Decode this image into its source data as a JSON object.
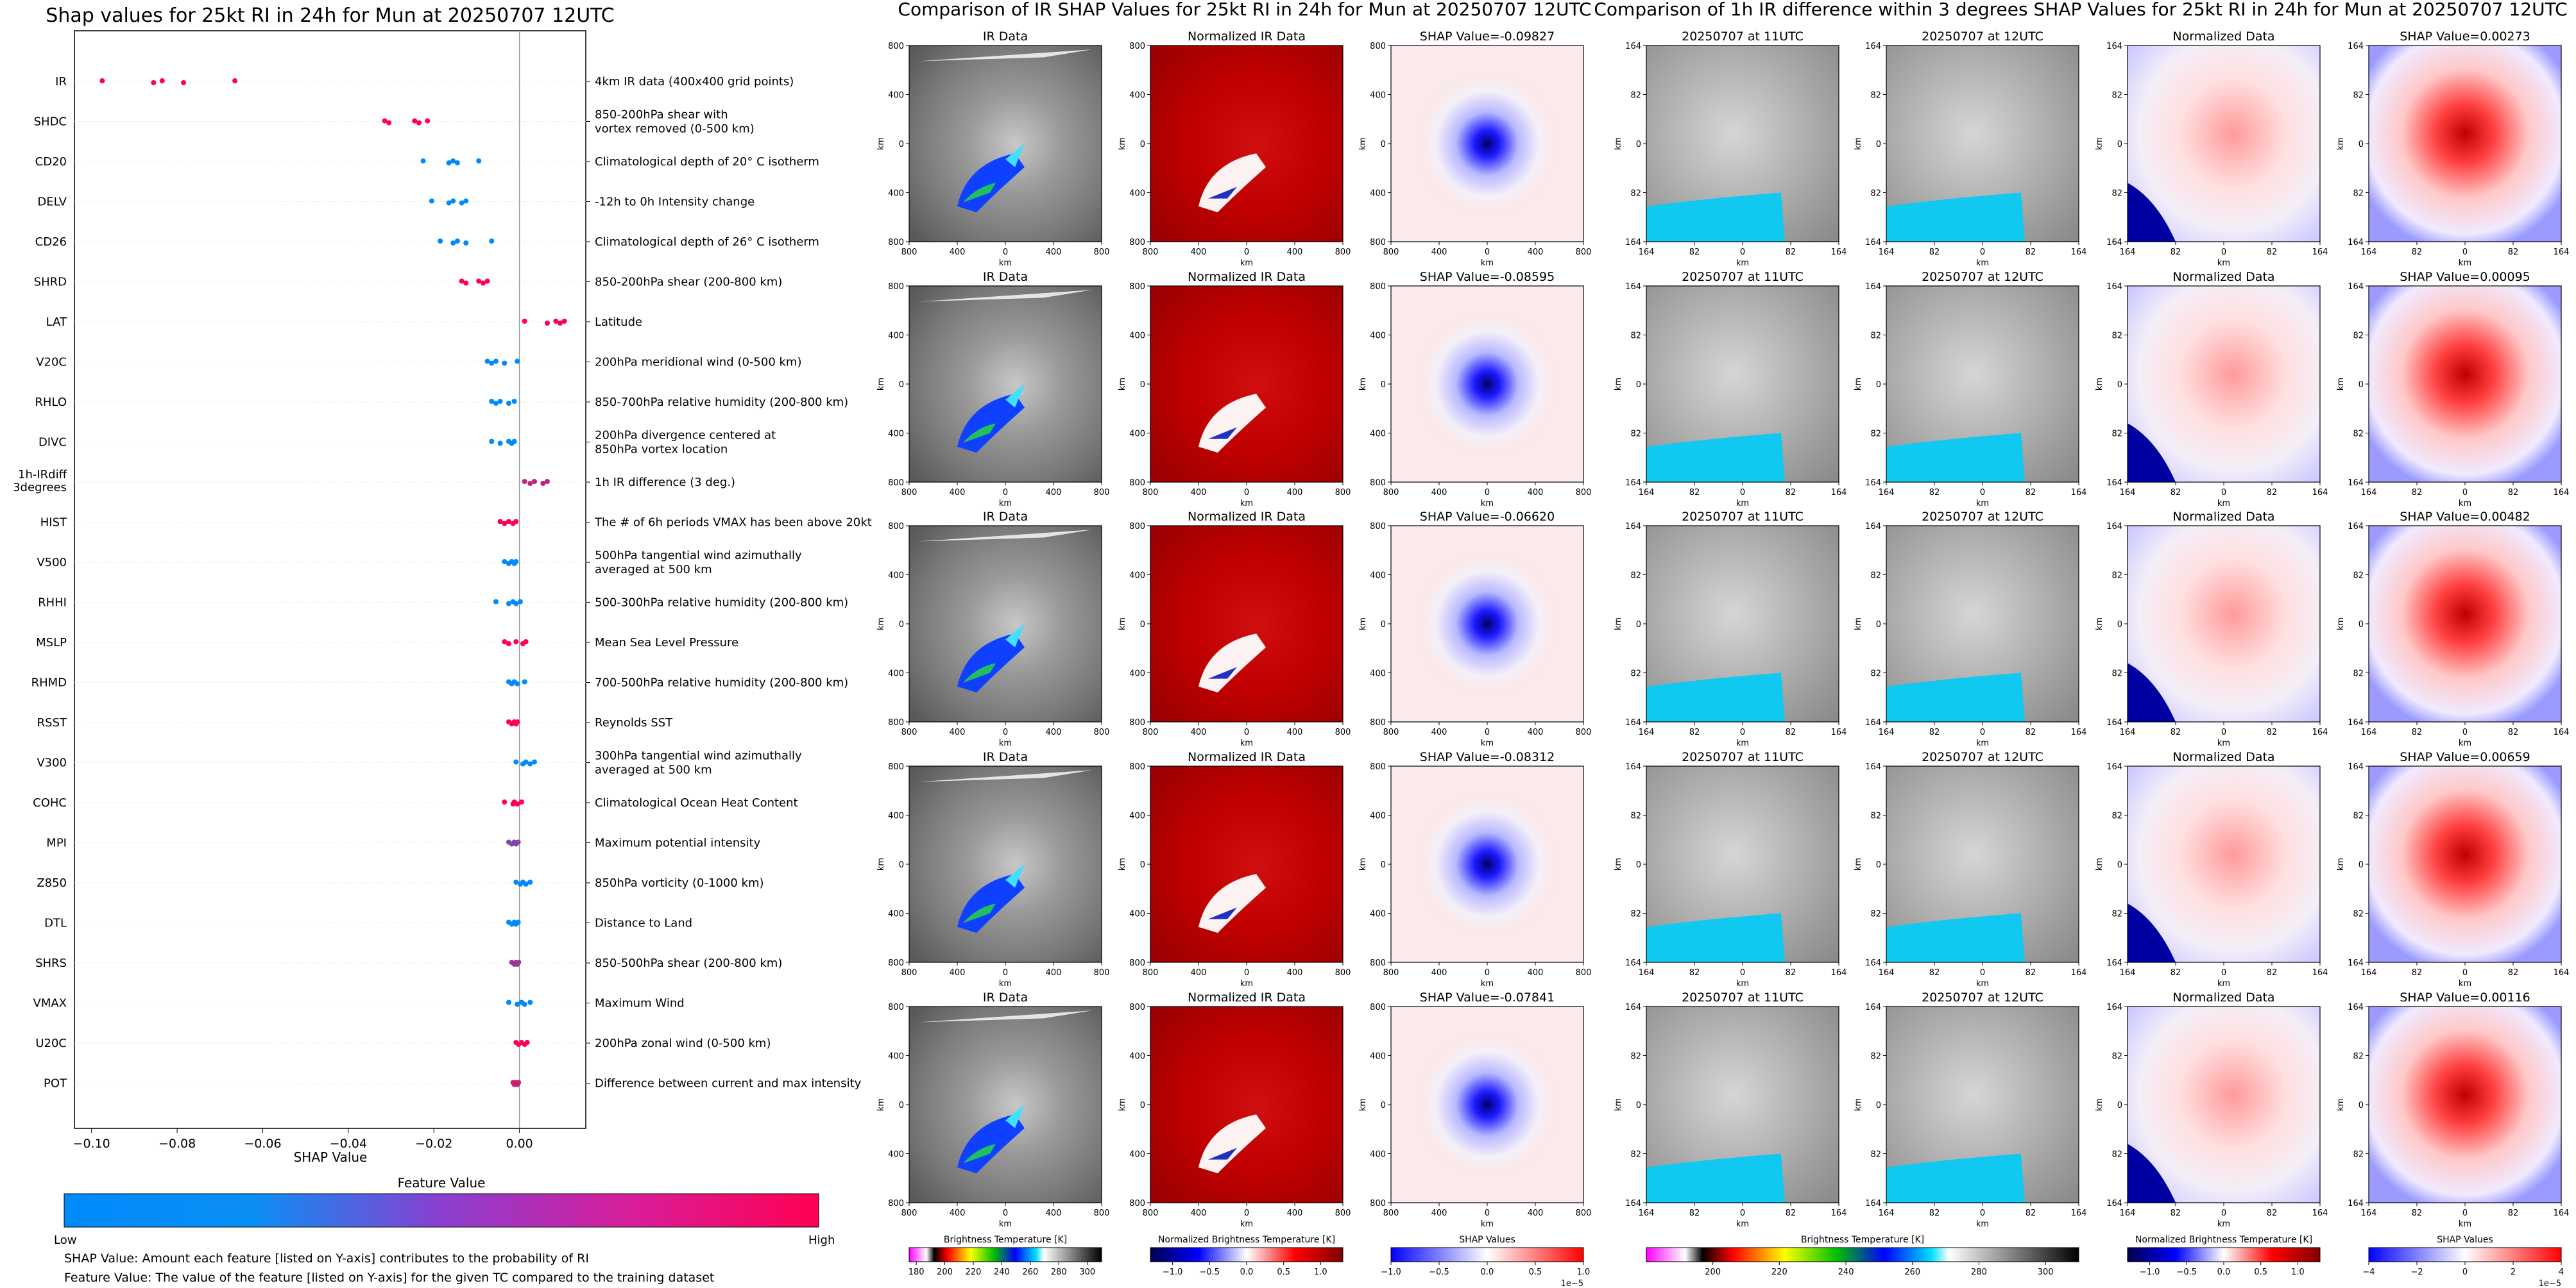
{
  "left_panel": {
    "title": "Shap values for 25kt RI in 24h for Mun at 20250707 12UTC",
    "x_axis_label": "SHAP Value",
    "x_ticks": [
      "-0.10",
      "-0.08",
      "-0.06",
      "-0.04",
      "-0.02",
      "0.00"
    ],
    "colorbar": {
      "label": "Feature Value",
      "low": "Low",
      "high": "High",
      "low_color": "#008afb",
      "high_color": "#ff0052"
    },
    "notes": [
      "SHAP Value: Amount each feature [listed on Y-axis] contributes to the probability of RI",
      "Feature Value: The value of the feature [listed on Y-axis] for the given TC compared to the training dataset"
    ]
  },
  "chart_data": {
    "type": "scatter",
    "title": "Shap values for 25kt RI in 24h for Mun at 20250707 12UTC",
    "xlabel": "SHAP Value",
    "ylabel": "",
    "xlim": [
      -0.104,
      0.0155
    ],
    "features": [
      {
        "name": "IR",
        "desc": [
          "4km IR data (400x400 grid points)"
        ],
        "points": [
          [
            -0.0975,
            1.0
          ],
          [
            -0.0855,
            1.0
          ],
          [
            -0.0835,
            1.0
          ],
          [
            -0.0785,
            1.0
          ],
          [
            -0.0665,
            1.0
          ]
        ]
      },
      {
        "name": "SHDC",
        "desc": [
          "850-200hPa shear with",
          "vortex removed (0-500 km)"
        ],
        "points": [
          [
            -0.0315,
            1.0
          ],
          [
            -0.0305,
            1.0
          ],
          [
            -0.0245,
            1.0
          ],
          [
            -0.0235,
            1.0
          ],
          [
            -0.0215,
            1.0
          ]
        ]
      },
      {
        "name": "CD20",
        "desc": [
          "Climatological depth of 20° C isotherm"
        ],
        "points": [
          [
            -0.0225,
            0.0
          ],
          [
            -0.0165,
            0.0
          ],
          [
            -0.0155,
            0.0
          ],
          [
            -0.0145,
            0.0
          ],
          [
            -0.0095,
            0.0
          ]
        ]
      },
      {
        "name": "DELV",
        "desc": [
          "-12h to 0h Intensity change"
        ],
        "points": [
          [
            -0.0205,
            0.0
          ],
          [
            -0.0165,
            0.0
          ],
          [
            -0.0155,
            0.0
          ],
          [
            -0.0135,
            0.0
          ],
          [
            -0.0125,
            0.0
          ]
        ]
      },
      {
        "name": "CD26",
        "desc": [
          "Climatological depth of 26° C isotherm"
        ],
        "points": [
          [
            -0.0185,
            0.0
          ],
          [
            -0.0155,
            0.0
          ],
          [
            -0.0145,
            0.0
          ],
          [
            -0.0125,
            0.0
          ],
          [
            -0.0065,
            0.0
          ]
        ]
      },
      {
        "name": "SHRD",
        "desc": [
          "850-200hPa shear (200-800 km)"
        ],
        "points": [
          [
            -0.0135,
            1.0
          ],
          [
            -0.0125,
            1.0
          ],
          [
            -0.0095,
            1.0
          ],
          [
            -0.0085,
            1.0
          ],
          [
            -0.0075,
            1.0
          ]
        ]
      },
      {
        "name": "LAT",
        "desc": [
          "Latitude"
        ],
        "points": [
          [
            0.0012,
            1.0
          ],
          [
            0.0065,
            1.0
          ],
          [
            0.0085,
            1.0
          ],
          [
            0.0095,
            1.0
          ],
          [
            0.0105,
            1.0
          ]
        ]
      },
      {
        "name": "V20C",
        "desc": [
          "200hPa meridional wind (0-500 km)"
        ],
        "points": [
          [
            -0.0075,
            0.0
          ],
          [
            -0.0065,
            0.0
          ],
          [
            -0.0055,
            0.0
          ],
          [
            -0.0035,
            0.0
          ],
          [
            -0.0005,
            0.0
          ]
        ]
      },
      {
        "name": "RHLO",
        "desc": [
          "850-700hPa relative humidity (200-800 km)"
        ],
        "points": [
          [
            -0.0065,
            0.0
          ],
          [
            -0.0055,
            0.0
          ],
          [
            -0.0045,
            0.0
          ],
          [
            -0.0025,
            0.0
          ],
          [
            -0.0012,
            0.0
          ]
        ]
      },
      {
        "name": "DIVC",
        "desc": [
          "200hPa divergence centered at",
          "850hPa vortex location"
        ],
        "points": [
          [
            -0.0065,
            0.0
          ],
          [
            -0.0045,
            0.0
          ],
          [
            -0.0025,
            0.0
          ],
          [
            -0.0018,
            0.0
          ],
          [
            -0.0012,
            0.0
          ]
        ]
      },
      {
        "name": "1h-IRdiff 3degrees",
        "desc": [
          "1h IR difference (3 deg.)"
        ],
        "points": [
          [
            0.0012,
            0.75
          ],
          [
            0.0025,
            0.75
          ],
          [
            0.0035,
            0.75
          ],
          [
            0.0055,
            0.75
          ],
          [
            0.0065,
            0.75
          ]
        ]
      },
      {
        "name": "HIST",
        "desc": [
          "The # of 6h periods VMAX has been above 20kt"
        ],
        "points": [
          [
            -0.0045,
            1.0
          ],
          [
            -0.0035,
            1.0
          ],
          [
            -0.0025,
            1.0
          ],
          [
            -0.0015,
            1.0
          ],
          [
            -0.0008,
            1.0
          ]
        ]
      },
      {
        "name": "V500",
        "desc": [
          "500hPa tangential wind azimuthally",
          "averaged at 500 km"
        ],
        "points": [
          [
            -0.0035,
            0.0
          ],
          [
            -0.0025,
            0.0
          ],
          [
            -0.0018,
            0.0
          ],
          [
            -0.0012,
            0.0
          ],
          [
            -0.0008,
            0.0
          ]
        ]
      },
      {
        "name": "RHHI",
        "desc": [
          "500-300hPa relative humidity (200-800 km)"
        ],
        "points": [
          [
            -0.0055,
            0.0
          ],
          [
            -0.0025,
            0.0
          ],
          [
            -0.0015,
            0.0
          ],
          [
            -0.0008,
            0.0
          ],
          [
            0.0002,
            0.0
          ]
        ]
      },
      {
        "name": "MSLP",
        "desc": [
          "Mean Sea Level Pressure"
        ],
        "points": [
          [
            -0.0035,
            1.0
          ],
          [
            -0.0025,
            1.0
          ],
          [
            -0.0008,
            1.0
          ],
          [
            0.0008,
            1.0
          ],
          [
            0.0015,
            1.0
          ]
        ]
      },
      {
        "name": "RHMD",
        "desc": [
          "700-500hPa relative humidity (200-800 km)"
        ],
        "points": [
          [
            -0.0025,
            0.0
          ],
          [
            -0.0018,
            0.0
          ],
          [
            -0.0012,
            0.0
          ],
          [
            -0.0005,
            0.0
          ],
          [
            0.0012,
            0.0
          ]
        ]
      },
      {
        "name": "RSST",
        "desc": [
          "Reynolds SST"
        ],
        "points": [
          [
            -0.0025,
            1.0
          ],
          [
            -0.0018,
            1.0
          ],
          [
            -0.0012,
            1.0
          ],
          [
            -0.0008,
            1.0
          ],
          [
            -0.0005,
            1.0
          ]
        ]
      },
      {
        "name": "V300",
        "desc": [
          "300hPa tangential wind azimuthally",
          "averaged at 500 km"
        ],
        "points": [
          [
            -0.0008,
            0.0
          ],
          [
            0.0008,
            0.0
          ],
          [
            0.0015,
            0.0
          ],
          [
            0.0025,
            0.0
          ],
          [
            0.0035,
            0.0
          ]
        ]
      },
      {
        "name": "COHC",
        "desc": [
          "Climatological Ocean Heat Content"
        ],
        "points": [
          [
            -0.0035,
            1.0
          ],
          [
            -0.0015,
            1.0
          ],
          [
            -0.0012,
            1.0
          ],
          [
            -0.0005,
            1.0
          ],
          [
            0.0005,
            1.0
          ]
        ]
      },
      {
        "name": "MPI",
        "desc": [
          "Maximum potential intensity"
        ],
        "points": [
          [
            -0.0025,
            0.5
          ],
          [
            -0.0018,
            0.5
          ],
          [
            -0.0012,
            0.5
          ],
          [
            -0.0008,
            0.5
          ],
          [
            -0.0003,
            0.5
          ]
        ]
      },
      {
        "name": "Z850",
        "desc": [
          "850hPa vorticity (0-1000 km)"
        ],
        "points": [
          [
            -0.0008,
            0.0
          ],
          [
            0.0002,
            0.0
          ],
          [
            0.0008,
            0.0
          ],
          [
            0.0015,
            0.0
          ],
          [
            0.0025,
            0.0
          ]
        ]
      },
      {
        "name": "DTL",
        "desc": [
          "Distance to Land"
        ],
        "points": [
          [
            -0.0025,
            0.0
          ],
          [
            -0.0018,
            0.0
          ],
          [
            -0.0012,
            0.0
          ],
          [
            -0.0008,
            0.0
          ],
          [
            -0.0003,
            0.0
          ]
        ]
      },
      {
        "name": "SHRS",
        "desc": [
          "850-500hPa shear (200-800 km)"
        ],
        "points": [
          [
            -0.0018,
            0.6
          ],
          [
            -0.0012,
            0.6
          ],
          [
            -0.0008,
            0.6
          ],
          [
            -0.0005,
            0.6
          ],
          [
            -0.0002,
            0.6
          ]
        ]
      },
      {
        "name": "VMAX",
        "desc": [
          "Maximum Wind"
        ],
        "points": [
          [
            -0.0025,
            0.0
          ],
          [
            -0.0005,
            0.0
          ],
          [
            0.0005,
            0.0
          ],
          [
            0.0012,
            0.0
          ],
          [
            0.0025,
            0.0
          ]
        ]
      },
      {
        "name": "U20C",
        "desc": [
          "200hPa zonal wind (0-500 km)"
        ],
        "points": [
          [
            -0.0008,
            1.0
          ],
          [
            -0.0002,
            1.0
          ],
          [
            0.0005,
            1.0
          ],
          [
            0.0012,
            1.0
          ],
          [
            0.0018,
            1.0
          ]
        ]
      },
      {
        "name": "POT",
        "desc": [
          "Difference between current and max intensity"
        ],
        "points": [
          [
            -0.0015,
            0.8
          ],
          [
            -0.0012,
            0.8
          ],
          [
            -0.0008,
            0.8
          ],
          [
            -0.0005,
            0.8
          ],
          [
            -0.0002,
            0.8
          ]
        ]
      }
    ]
  },
  "ir_panel": {
    "title": "Comparison of IR SHAP Values for 25kt RI in 24h for Mun at 20250707 12UTC",
    "col_titles": [
      "IR Data",
      "Normalized IR Data"
    ],
    "shap_values": [
      "-0.09827",
      "-0.08595",
      "-0.06620",
      "-0.08312",
      "-0.07841"
    ],
    "shap_prefix": "SHAP Value=",
    "y_ticks": [
      "800",
      "400",
      "0",
      "400",
      "800"
    ],
    "x_ticks": [
      "800",
      "400",
      "0",
      "400",
      "800"
    ],
    "axis_label": "km",
    "colorbars": [
      {
        "label": "Brightness Temperature [K]",
        "ticks": [
          "180",
          "200",
          "220",
          "240",
          "260",
          "280",
          "300"
        ],
        "exponent": ""
      },
      {
        "label": "Normalized Brightness Temperature [K]",
        "ticks": [
          "−1.0",
          "−0.5",
          "0.0",
          "0.5",
          "1.0"
        ],
        "exponent": ""
      },
      {
        "label": "SHAP Values",
        "ticks": [
          "−1.0",
          "−0.5",
          "0.0",
          "0.5",
          "1.0"
        ],
        "exponent": "1e−5"
      }
    ]
  },
  "diff_panel": {
    "title": "Comparison of 1h IR difference within 3 degrees SHAP Values for 25kt RI in 24h for Mun at 20250707 12UTC",
    "col_titles": [
      "20250707 at 11UTC",
      "20250707 at 12UTC",
      "Normalized Data"
    ],
    "shap_values": [
      "0.00273",
      "0.00095",
      "0.00482",
      "0.00659",
      "0.00116"
    ],
    "shap_prefix": "SHAP Value=",
    "y_ticks": [
      "164",
      "82",
      "0",
      "82",
      "164"
    ],
    "x_ticks": [
      "164",
      "82",
      "0",
      "82",
      "164"
    ],
    "axis_label": "km",
    "colorbars": [
      {
        "label": "Brightness Temperature [K]",
        "ticks": [
          "200",
          "220",
          "240",
          "260",
          "280",
          "300"
        ],
        "exponent": ""
      },
      {
        "label": "Normalized Brightness Temperature [K]",
        "ticks": [
          "−1.0",
          "−0.5",
          "0.0",
          "0.5",
          "1.0"
        ],
        "exponent": ""
      },
      {
        "label": "SHAP Values",
        "ticks": [
          "−4",
          "−2",
          "0",
          "2",
          "4"
        ],
        "exponent": "1e−5"
      }
    ]
  }
}
